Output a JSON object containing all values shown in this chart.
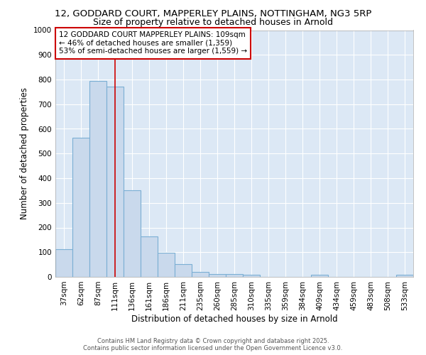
{
  "title_line1": "12, GODDARD COURT, MAPPERLEY PLAINS, NOTTINGHAM, NG3 5RP",
  "title_line2": "Size of property relative to detached houses in Arnold",
  "xlabel": "Distribution of detached houses by size in Arnold",
  "ylabel": "Number of detached properties",
  "bar_edge_color": "#7bafd4",
  "bar_face_color": "#c9d9ec",
  "background_color": "#dce8f5",
  "grid_color": "#ffffff",
  "fig_background": "#ffffff",
  "categories": [
    "37sqm",
    "62sqm",
    "87sqm",
    "111sqm",
    "136sqm",
    "161sqm",
    "186sqm",
    "211sqm",
    "235sqm",
    "260sqm",
    "285sqm",
    "310sqm",
    "335sqm",
    "359sqm",
    "384sqm",
    "409sqm",
    "434sqm",
    "459sqm",
    "483sqm",
    "508sqm",
    "533sqm"
  ],
  "values": [
    113,
    563,
    793,
    770,
    350,
    165,
    98,
    52,
    20,
    12,
    12,
    10,
    0,
    0,
    0,
    8,
    0,
    0,
    0,
    0,
    8
  ],
  "ylim": [
    0,
    1000
  ],
  "yticks": [
    0,
    100,
    200,
    300,
    400,
    500,
    600,
    700,
    800,
    900,
    1000
  ],
  "vline_x": 3,
  "vline_color": "#cc0000",
  "annotation_line1": "12 GODDARD COURT MAPPERLEY PLAINS: 109sqm",
  "annotation_line2": "← 46% of detached houses are smaller (1,359)",
  "annotation_line3": "53% of semi-detached houses are larger (1,559) →",
  "annotation_box_color": "#cc0000",
  "footer_line1": "Contains HM Land Registry data © Crown copyright and database right 2025.",
  "footer_line2": "Contains public sector information licensed under the Open Government Licence v3.0.",
  "title_fontsize": 9.5,
  "subtitle_fontsize": 9,
  "axis_label_fontsize": 8.5,
  "tick_fontsize": 7.5,
  "annotation_fontsize": 7.5,
  "footer_fontsize": 6
}
